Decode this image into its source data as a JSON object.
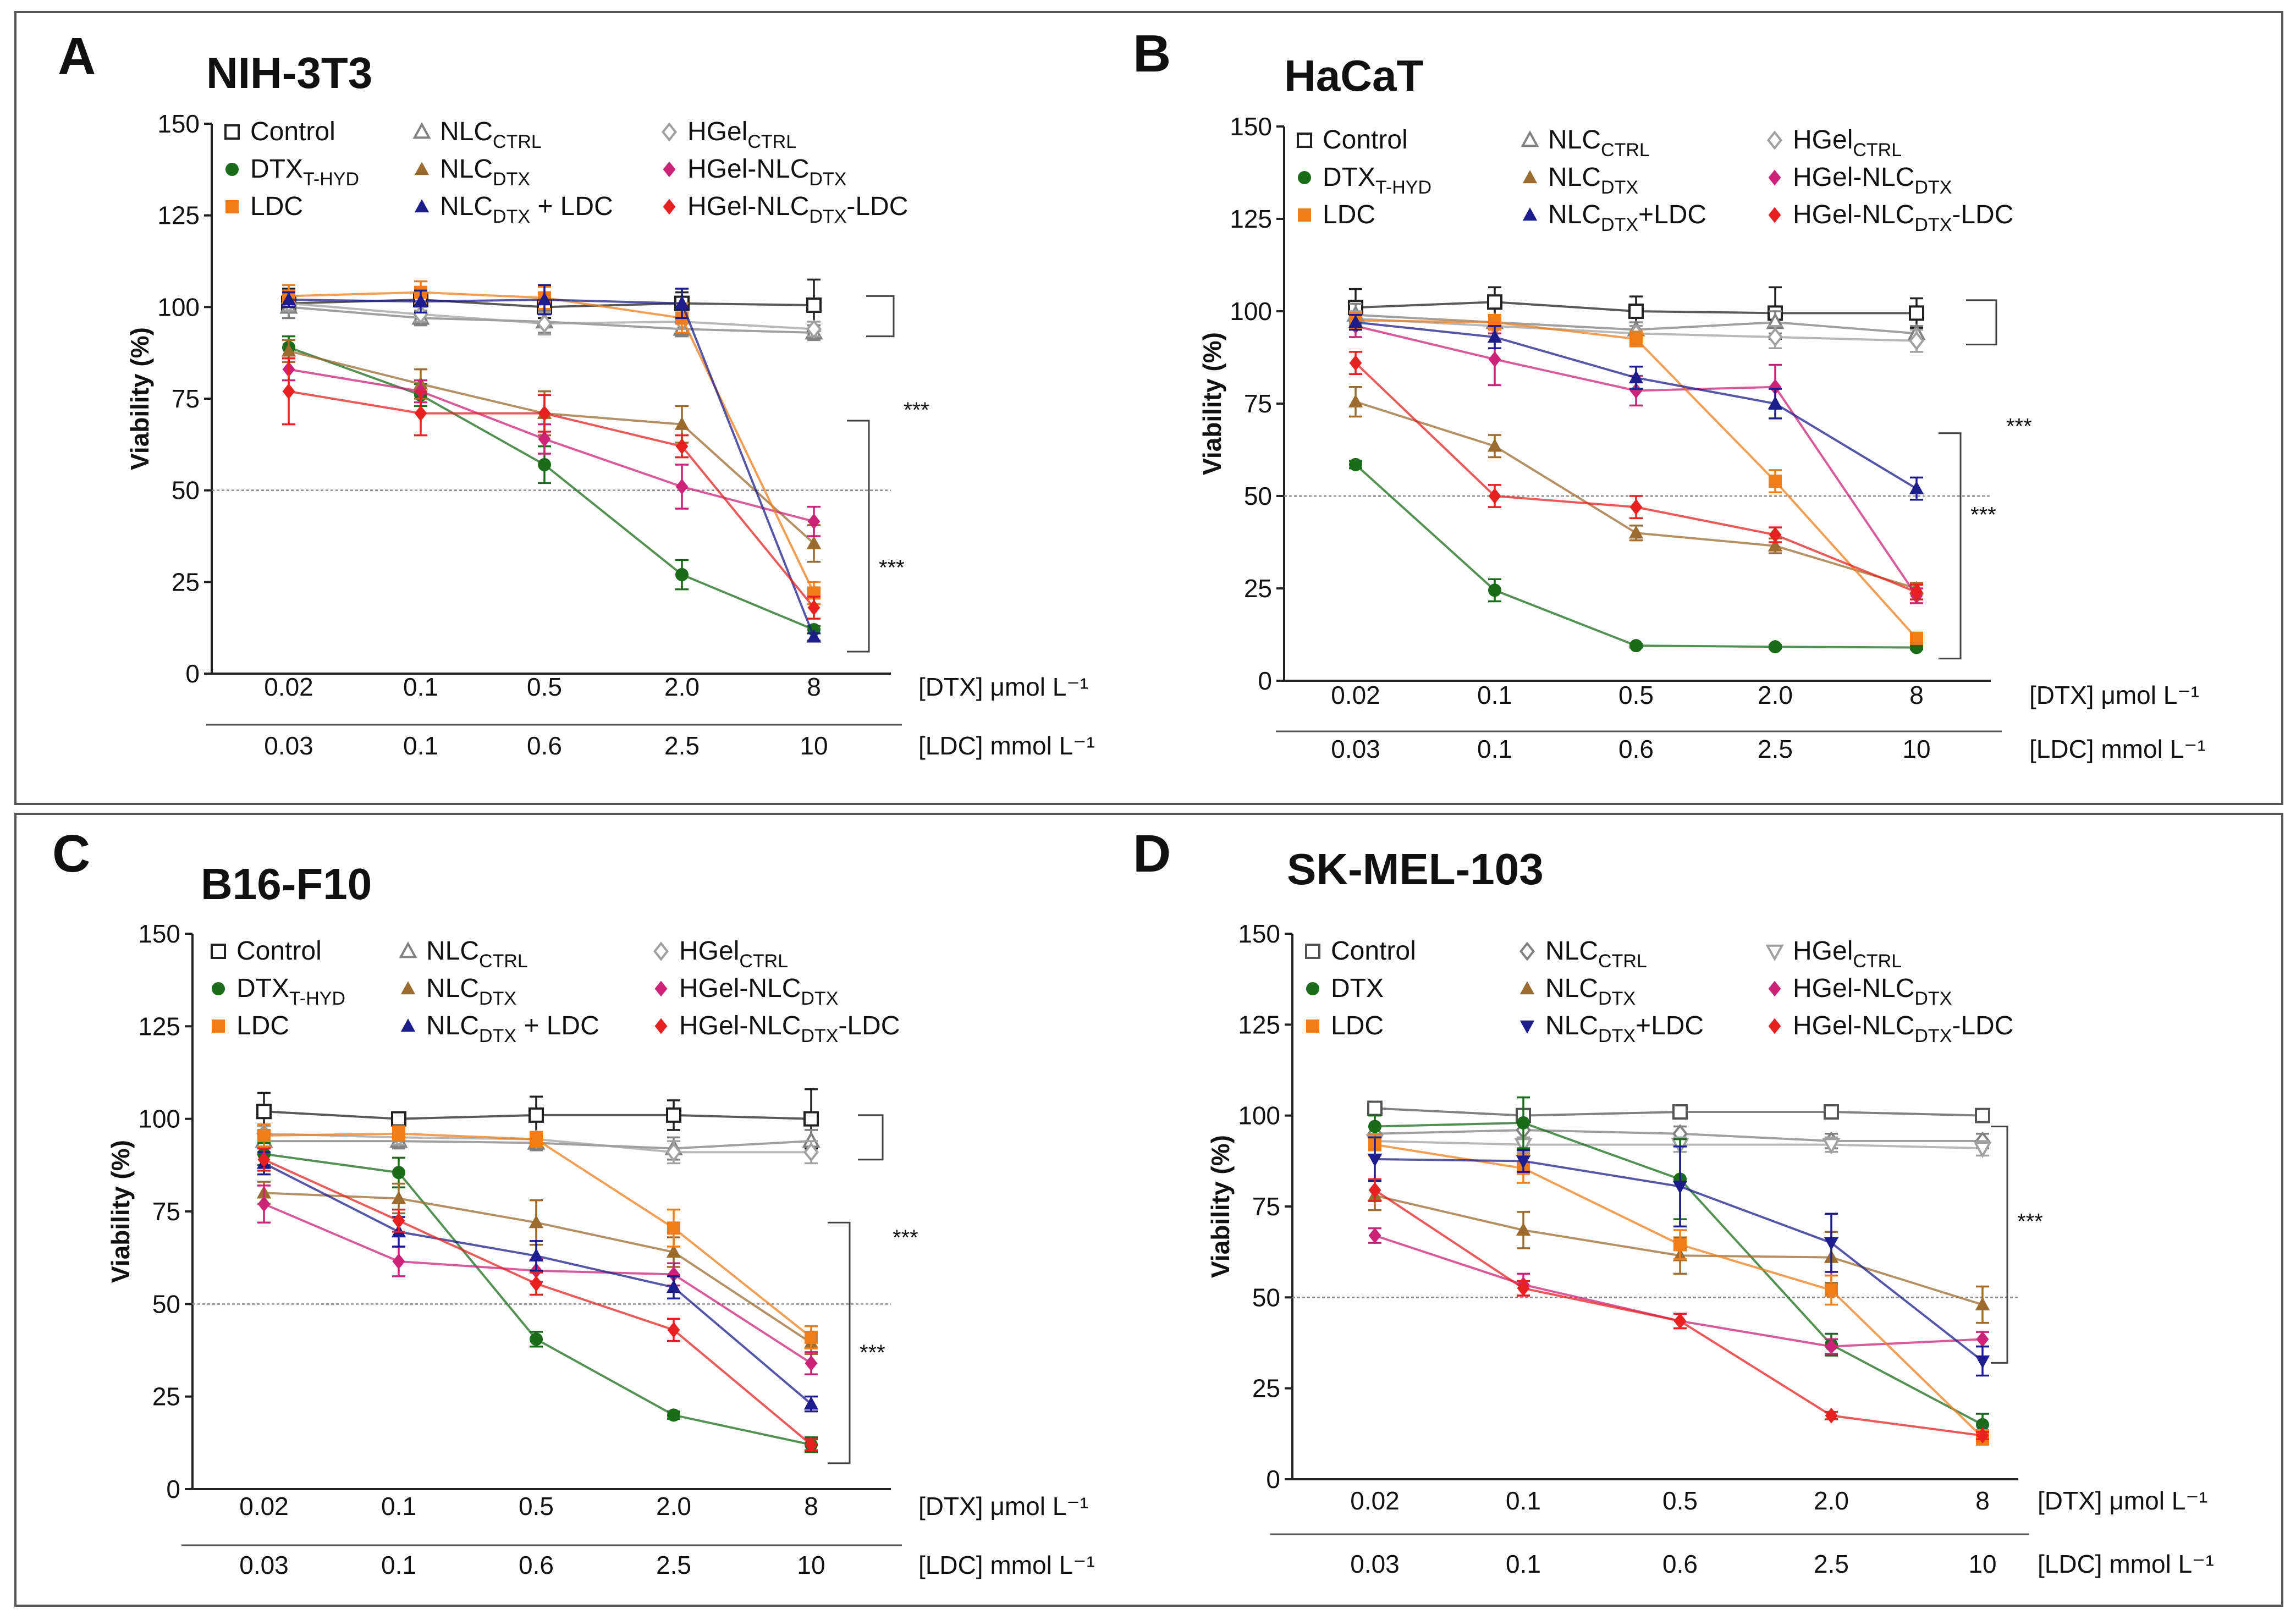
{
  "chart_data": [
    {
      "type": "line",
      "panel_label": "A",
      "title": "NIH-3T3",
      "ylabel": "Viability (%)",
      "ylim": [
        0,
        150
      ],
      "yticks": [
        "0",
        "25",
        "50",
        "75",
        "100",
        "125",
        "150"
      ],
      "reference_line": 50,
      "x_axis_name": "[DTX] μmol L⁻¹",
      "x2_axis_name": "[LDC] mmol L⁻¹",
      "categories": [
        "0.02",
        "0.1",
        "0.5",
        "2.0",
        "8"
      ],
      "categories2": [
        "0.03",
        "0.1",
        "0.6",
        "2.5",
        "10"
      ],
      "significance": [
        "***",
        "***"
      ],
      "series": [
        {
          "name": "Control",
          "sub": "",
          "suffix": "",
          "color": "#222222",
          "marker": "square-open",
          "values": [
            101,
            102,
            100,
            101,
            100.5
          ],
          "errors": [
            4,
            3,
            3,
            3,
            7
          ]
        },
        {
          "name": "NLC",
          "sub": "CTRL",
          "suffix": "",
          "color": "#808080",
          "marker": "triangle-open",
          "values": [
            100,
            97,
            96,
            94,
            93
          ],
          "errors": [
            3,
            2,
            3,
            2,
            2
          ]
        },
        {
          "name": "HGel",
          "sub": "CTRL",
          "suffix": "",
          "color": "#a0a0a0",
          "marker": "diamond-open",
          "values": [
            101,
            98,
            95.5,
            96,
            94
          ],
          "errors": [
            2,
            2,
            3,
            2,
            2
          ]
        },
        {
          "name": "DTX",
          "sub": "T-HYD",
          "suffix": "",
          "color": "#1a6b1a",
          "marker": "circle",
          "values": [
            89,
            76,
            57,
            27,
            12
          ],
          "errors": [
            3,
            3,
            5,
            4,
            1
          ]
        },
        {
          "name": "NLC",
          "sub": "DTX",
          "suffix": "",
          "color": "#9c6b2e",
          "marker": "triangle",
          "values": [
            88,
            79,
            71,
            68,
            35.5
          ],
          "errors": [
            3,
            4,
            6,
            5,
            5
          ]
        },
        {
          "name": "HGel-NLC",
          "sub": "DTX",
          "suffix": "",
          "color": "#cc2277",
          "marker": "diamond",
          "values": [
            83,
            77,
            64,
            51,
            41.5
          ],
          "errors": [
            3,
            3,
            4,
            6,
            4
          ]
        },
        {
          "name": "LDC",
          "sub": "",
          "suffix": "",
          "color": "#f07d1a",
          "marker": "square",
          "values": [
            103,
            104,
            102.5,
            97,
            22
          ],
          "errors": [
            3,
            3,
            3,
            4,
            3
          ]
        },
        {
          "name": "NLC",
          "sub": "DTX",
          "suffix": " + LDC",
          "color": "#1c1c8c",
          "marker": "triangle",
          "values": [
            102,
            101.5,
            102,
            101,
            10
          ],
          "errors": [
            2,
            3,
            4,
            4,
            1
          ]
        },
        {
          "name": "HGel-NLC",
          "sub": "DTX",
          "suffix": "-LDC",
          "color": "#e82020",
          "marker": "diamond",
          "values": [
            77,
            71,
            71,
            62,
            18
          ],
          "errors": [
            9,
            6,
            5,
            3,
            3
          ]
        }
      ]
    },
    {
      "type": "line",
      "panel_label": "B",
      "title": "HaCaT",
      "ylabel": "Viability (%)",
      "ylim": [
        0,
        150
      ],
      "yticks": [
        "0",
        "25",
        "50",
        "75",
        "100",
        "125",
        "150"
      ],
      "reference_line": 50,
      "x_axis_name": "[DTX] μmol L⁻¹",
      "x2_axis_name": "[LDC] mmol L⁻¹",
      "categories": [
        "0.02",
        "0.1",
        "0.5",
        "2.0",
        "8"
      ],
      "categories2": [
        "0.03",
        "0.1",
        "0.6",
        "2.5",
        "10"
      ],
      "significance": [
        "***",
        "***"
      ],
      "series": [
        {
          "name": "Control",
          "sub": "",
          "suffix": "",
          "color": "#222222",
          "marker": "square-open",
          "values": [
            101,
            102.5,
            100,
            99.5,
            99.5
          ],
          "errors": [
            5,
            4,
            4,
            7,
            4
          ]
        },
        {
          "name": "NLC",
          "sub": "CTRL",
          "suffix": "",
          "color": "#808080",
          "marker": "triangle-open",
          "values": [
            99,
            97,
            95,
            97,
            94
          ],
          "errors": [
            3,
            2,
            2,
            3,
            2
          ]
        },
        {
          "name": "HGel",
          "sub": "CTRL",
          "suffix": "",
          "color": "#a0a0a0",
          "marker": "diamond-open",
          "values": [
            98,
            96,
            94,
            93,
            92
          ],
          "errors": [
            2,
            2,
            2,
            3,
            3
          ]
        },
        {
          "name": "DTX",
          "sub": "T-HYD",
          "suffix": "",
          "color": "#1a6b1a",
          "marker": "circle",
          "values": [
            58.5,
            24.5,
            9.5,
            9.2,
            9
          ],
          "errors": [
            1,
            3,
            0.5,
            0.5,
            0.5
          ]
        },
        {
          "name": "NLC",
          "sub": "DTX",
          "suffix": "",
          "color": "#9c6b2e",
          "marker": "triangle",
          "values": [
            75.5,
            63.5,
            40,
            36.5,
            25
          ],
          "errors": [
            4,
            3,
            2,
            2,
            1.5
          ]
        },
        {
          "name": "HGel-NLC",
          "sub": "DTX",
          "suffix": "",
          "color": "#cc2277",
          "marker": "diamond",
          "values": [
            96,
            87,
            78.5,
            79.5,
            23
          ],
          "errors": [
            3,
            7,
            4,
            6,
            2
          ]
        },
        {
          "name": "LDC",
          "sub": "",
          "suffix": "",
          "color": "#f07d1a",
          "marker": "square",
          "values": [
            97.5,
            97,
            92.5,
            54,
            11.5
          ],
          "errors": [
            2,
            2,
            2,
            3,
            1.5
          ]
        },
        {
          "name": "NLC",
          "sub": "DTX",
          "suffix": "+LDC",
          "color": "#1c1c8c",
          "marker": "triangle",
          "values": [
            97,
            93,
            82,
            75,
            52
          ],
          "errors": [
            2,
            3,
            3,
            4,
            3
          ]
        },
        {
          "name": "HGel-NLC",
          "sub": "DTX",
          "suffix": "-LDC",
          "color": "#e82020",
          "marker": "diamond",
          "values": [
            86,
            50,
            47,
            39.5,
            24
          ],
          "errors": [
            3,
            3,
            3,
            2,
            2
          ]
        }
      ]
    },
    {
      "type": "line",
      "panel_label": "C",
      "title": "B16-F10",
      "ylabel": "Viability (%)",
      "ylim": [
        0,
        150
      ],
      "yticks": [
        "0",
        "25",
        "50",
        "75",
        "100",
        "125",
        "150"
      ],
      "reference_line": 50,
      "x_axis_name": "[DTX] μmol L⁻¹",
      "x2_axis_name": "[LDC] mmol L⁻¹",
      "categories": [
        "0.02",
        "0.1",
        "0.5",
        "2.0",
        "8"
      ],
      "categories2": [
        "0.03",
        "0.1",
        "0.6",
        "2.5",
        "10"
      ],
      "significance": [
        "***",
        "***"
      ],
      "series": [
        {
          "name": "Control",
          "sub": "",
          "suffix": "",
          "color": "#222222",
          "marker": "square-open",
          "values": [
            102,
            100,
            101,
            101,
            100
          ],
          "errors": [
            5,
            1,
            5,
            4,
            8
          ]
        },
        {
          "name": "NLC",
          "sub": "CTRL",
          "suffix": "",
          "color": "#808080",
          "marker": "triangle-open",
          "values": [
            94,
            94,
            93.5,
            92,
            94
          ],
          "errors": [
            2,
            2,
            2,
            3,
            3
          ]
        },
        {
          "name": "HGel",
          "sub": "CTRL",
          "suffix": "",
          "color": "#a0a0a0",
          "marker": "diamond-open",
          "values": [
            96,
            95,
            94.5,
            91,
            91
          ],
          "errors": [
            2,
            2,
            2,
            3,
            3
          ]
        },
        {
          "name": "DTX",
          "sub": "T-HYD",
          "suffix": "",
          "color": "#1a6b1a",
          "marker": "circle",
          "values": [
            90.5,
            85.5,
            40.5,
            20,
            12
          ],
          "errors": [
            3,
            4,
            2,
            1,
            2
          ]
        },
        {
          "name": "NLC",
          "sub": "DTX",
          "suffix": "",
          "color": "#9c6b2e",
          "marker": "triangle",
          "values": [
            80,
            78.5,
            72,
            64,
            39.5
          ],
          "errors": [
            3,
            4,
            6,
            4,
            3
          ]
        },
        {
          "name": "HGel-NLC",
          "sub": "DTX",
          "suffix": "",
          "color": "#cc2277",
          "marker": "diamond",
          "values": [
            77,
            61.5,
            59,
            58,
            34
          ],
          "errors": [
            5,
            4,
            3,
            3,
            3
          ]
        },
        {
          "name": "LDC",
          "sub": "",
          "suffix": "",
          "color": "#f07d1a",
          "marker": "square",
          "values": [
            95.5,
            96,
            94.5,
            70.5,
            41
          ],
          "errors": [
            3,
            2,
            2,
            5,
            3
          ]
        },
        {
          "name": "NLC",
          "sub": "DTX",
          "suffix": " + LDC",
          "color": "#1c1c8c",
          "marker": "triangle",
          "values": [
            88,
            69.5,
            63,
            54.5,
            23
          ],
          "errors": [
            3,
            4,
            4,
            3,
            2
          ]
        },
        {
          "name": "HGel-NLC",
          "sub": "DTX",
          "suffix": "-LDC",
          "color": "#e82020",
          "marker": "diamond",
          "values": [
            89,
            72.5,
            55.5,
            43,
            12
          ],
          "errors": [
            3,
            3,
            3,
            3,
            1.5
          ]
        }
      ]
    },
    {
      "type": "line",
      "panel_label": "D",
      "title": "SK-MEL-103",
      "ylabel": "Viability (%)",
      "ylim": [
        0,
        150
      ],
      "yticks": [
        "0",
        "25",
        "50",
        "75",
        "100",
        "125",
        "150"
      ],
      "reference_line": 50,
      "x_axis_name": "[DTX] μmol L⁻¹",
      "x2_axis_name": "[LDC] mmol L⁻¹",
      "categories": [
        "0.02",
        "0.1",
        "0.5",
        "2.0",
        "8"
      ],
      "categories2": [
        "0.03",
        "0.1",
        "0.6",
        "2.5",
        "10"
      ],
      "significance": [
        "***"
      ],
      "series": [
        {
          "name": "Control",
          "sub": "",
          "suffix": "",
          "color": "#555555",
          "marker": "square-open",
          "values": [
            102,
            100,
            101,
            101,
            100
          ],
          "errors": [
            1,
            1,
            1,
            1,
            1
          ]
        },
        {
          "name": "NLC",
          "sub": "CTRL",
          "suffix": "",
          "color": "#808080",
          "marker": "diamond-open",
          "values": [
            95,
            96,
            95,
            93,
            93
          ],
          "errors": [
            2,
            2,
            2,
            2,
            2
          ]
        },
        {
          "name": "HGel",
          "sub": "CTRL",
          "suffix": "",
          "color": "#a0a0a0",
          "marker": "triangle-down-open",
          "values": [
            93,
            92,
            92,
            92,
            91
          ],
          "errors": [
            2,
            2,
            2,
            2,
            2
          ]
        },
        {
          "name": "DTX",
          "sub": "",
          "suffix": "",
          "color": "#1a6b1a",
          "marker": "circle",
          "values": [
            97,
            98,
            82.5,
            37,
            15
          ],
          "errors": [
            3,
            7,
            11,
            3,
            3
          ]
        },
        {
          "name": "NLC",
          "sub": "DTX",
          "suffix": "",
          "color": "#9c6b2e",
          "marker": "triangle",
          "values": [
            78,
            68.5,
            61.5,
            61,
            48
          ],
          "errors": [
            4,
            5,
            5,
            7,
            5
          ]
        },
        {
          "name": "HGel-NLC",
          "sub": "DTX",
          "suffix": "",
          "color": "#cc2277",
          "marker": "diamond",
          "values": [
            67,
            53.5,
            43.5,
            36.5,
            38.5
          ],
          "errors": [
            2,
            3,
            2,
            2,
            2
          ]
        },
        {
          "name": "LDC",
          "sub": "",
          "suffix": "",
          "color": "#f07d1a",
          "marker": "square",
          "values": [
            92,
            85.5,
            64.5,
            52,
            11.5
          ],
          "errors": [
            3,
            4,
            4,
            4,
            2
          ]
        },
        {
          "name": "NLC",
          "sub": "DTX",
          "suffix": "+LDC",
          "color": "#1c1c8c",
          "marker": "triangle-down",
          "values": [
            88,
            87.5,
            80.5,
            65,
            32.5
          ],
          "errors": [
            6,
            3,
            11,
            8,
            4
          ]
        },
        {
          "name": "HGel-NLC",
          "sub": "DTX",
          "suffix": "-LDC",
          "color": "#e82020",
          "marker": "diamond",
          "values": [
            79.5,
            52.5,
            43.5,
            17.5,
            12
          ],
          "errors": [
            3,
            2,
            2,
            1,
            1
          ]
        }
      ]
    }
  ]
}
